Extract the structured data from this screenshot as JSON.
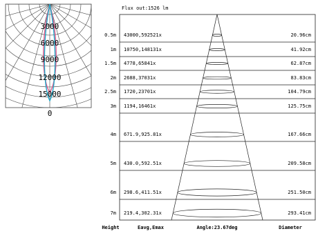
{
  "chart_data": [
    {
      "type": "polar",
      "name": "polar-luminous-intensity",
      "ring_labels": [
        "3000",
        "6000",
        "9000",
        "12000",
        "15000"
      ],
      "center_label": "0",
      "colors": {
        "curve_a": "#e05a8a",
        "curve_b": "#1fa7c8",
        "grid": "#444444"
      }
    },
    {
      "type": "table",
      "name": "illuminance-cone",
      "title": "Flux out:1526 lm",
      "footer": {
        "height": "Height",
        "eavg": "Eavg,Emax",
        "angle": "Angle:23.67deg",
        "diameter": "Diameter"
      },
      "rows": [
        {
          "height": "0.5m",
          "eavg_emax": "43000,592521x",
          "diameter": "20.96cm"
        },
        {
          "height": "1m",
          "eavg_emax": "10750,148131x",
          "diameter": "41.92cm"
        },
        {
          "height": "1.5m",
          "eavg_emax": "4778,65841x",
          "diameter": "62.87cm"
        },
        {
          "height": "2m",
          "eavg_emax": "2688,37031x",
          "diameter": "83.83cm"
        },
        {
          "height": "2.5m",
          "eavg_emax": "1720,23701x",
          "diameter": "104.79cm"
        },
        {
          "height": "3m",
          "eavg_emax": "1194,16461x",
          "diameter": "125.75cm"
        },
        {
          "height": "4m",
          "eavg_emax": "671.9,925.81x",
          "diameter": "167.66cm"
        },
        {
          "height": "5m",
          "eavg_emax": "430.0,592.51x",
          "diameter": "209.58cm"
        },
        {
          "height": "6m",
          "eavg_emax": "298.6,411.51x",
          "diameter": "251.50cm"
        },
        {
          "height": "7m",
          "eavg_emax": "219.4,302.31x",
          "diameter": "293.41cm"
        }
      ]
    }
  ]
}
